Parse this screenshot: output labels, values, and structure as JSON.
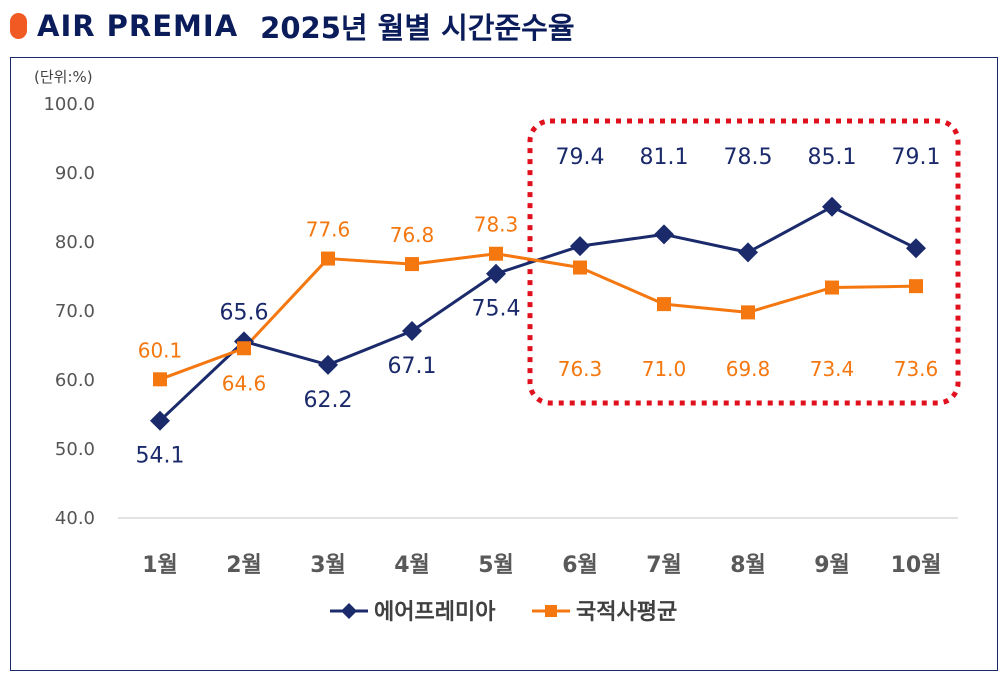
{
  "header": {
    "logo": "AIR PREMIA",
    "title": "2025년 월별 시간준수율"
  },
  "chart_data": {
    "type": "line",
    "unit_label": "(단위:%)",
    "categories": [
      "1월",
      "2월",
      "3월",
      "4월",
      "5월",
      "6월",
      "7월",
      "8월",
      "9월",
      "10월"
    ],
    "ylim": [
      40,
      100
    ],
    "yticks": [
      "40.0",
      "50.0",
      "60.0",
      "70.0",
      "80.0",
      "90.0",
      "100.0"
    ],
    "series": [
      {
        "name": "에어프레미아",
        "color": "#1b2a6b",
        "marker": "diamond",
        "values": [
          54.1,
          65.6,
          62.2,
          67.1,
          75.4,
          79.4,
          81.1,
          78.5,
          85.1,
          79.1
        ],
        "labels": [
          "54.1",
          "65.6",
          "62.2",
          "67.1",
          "75.4",
          "79.4",
          "81.1",
          "78.5",
          "85.1",
          "79.1"
        ]
      },
      {
        "name": "국적사평균",
        "color": "#f4770f",
        "marker": "square",
        "values": [
          60.1,
          64.6,
          77.6,
          76.8,
          78.3,
          76.3,
          71.0,
          69.8,
          73.4,
          73.6
        ],
        "labels": [
          "60.1",
          "64.6",
          "77.6",
          "76.8",
          "78.3",
          "76.3",
          "71.0",
          "69.8",
          "73.4",
          "73.6"
        ]
      }
    ],
    "highlight": {
      "from": "6월",
      "to": "10월",
      "style": "red-dotted-box"
    }
  }
}
